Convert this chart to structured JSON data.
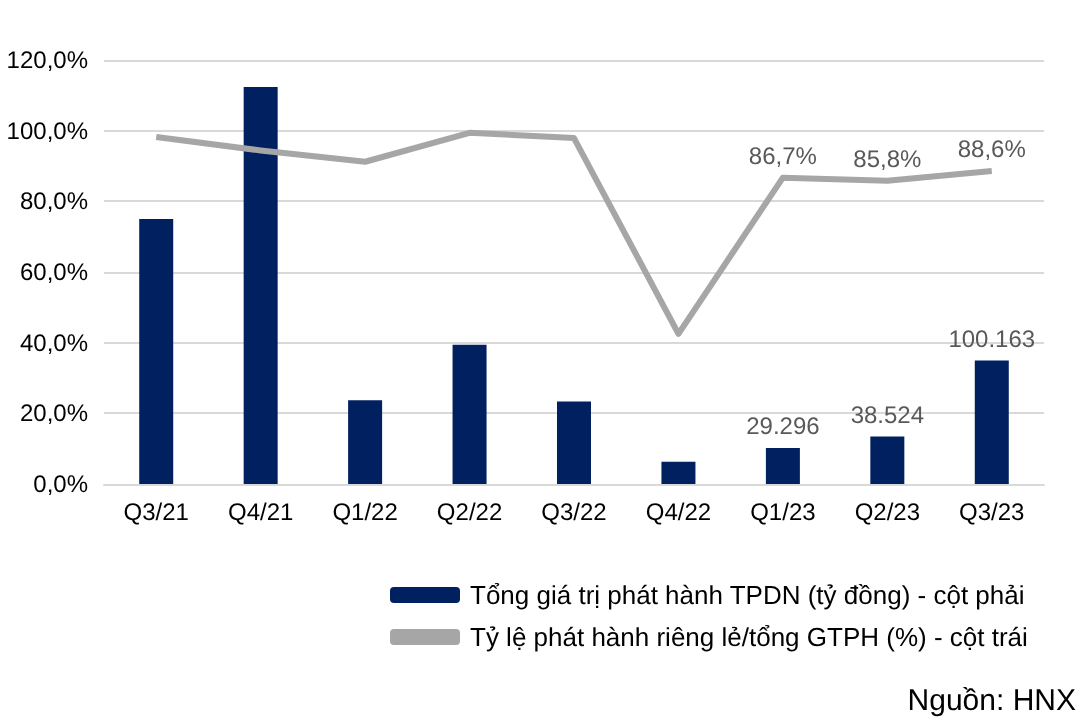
{
  "chart_data": {
    "type": "bar",
    "categories": [
      "Q3/21",
      "Q4/21",
      "Q1/22",
      "Q2/22",
      "Q3/22",
      "Q4/22",
      "Q1/23",
      "Q2/23",
      "Q3/23"
    ],
    "series": [
      {
        "name": "Tổng giá trị phát hành TPDN (tỷ đồng) - cột phải",
        "axis": "y2",
        "color": "#002060",
        "values": [
          215000,
          322000,
          68000,
          113000,
          67000,
          18000,
          29296,
          38524,
          100163
        ],
        "value_labels": [
          null,
          null,
          null,
          null,
          null,
          null,
          "29.296",
          "38.524",
          "100.163"
        ]
      },
      {
        "name": "Tỷ lệ phát hành riêng lẻ/tổng GTPH (%) - cột trái",
        "type": "line",
        "color": "#a6a6a6",
        "marker": "none",
        "values": [
          98.2,
          94.4,
          91.2,
          99.4,
          97.9,
          42.5,
          86.7,
          85.8,
          88.6
        ],
        "value_labels": [
          null,
          null,
          null,
          null,
          null,
          null,
          "86,7%",
          "85,8%",
          "88,6%"
        ]
      }
    ],
    "ylim": [
      0,
      120
    ],
    "yticks": [
      {
        "value": 0,
        "label": "0,0%"
      },
      {
        "value": 20,
        "label": "20,0%"
      },
      {
        "value": 40,
        "label": "40,0%"
      },
      {
        "value": 60,
        "label": "60,0%"
      },
      {
        "value": 80,
        "label": "80,0%"
      },
      {
        "value": 100,
        "label": "100,0%"
      },
      {
        "value": 120,
        "label": "120,0%"
      }
    ],
    "y2lim": [
      0,
      344000
    ],
    "grid": "y",
    "legend": "bottom",
    "annotations": [
      "Nguồn: HNX"
    ]
  }
}
